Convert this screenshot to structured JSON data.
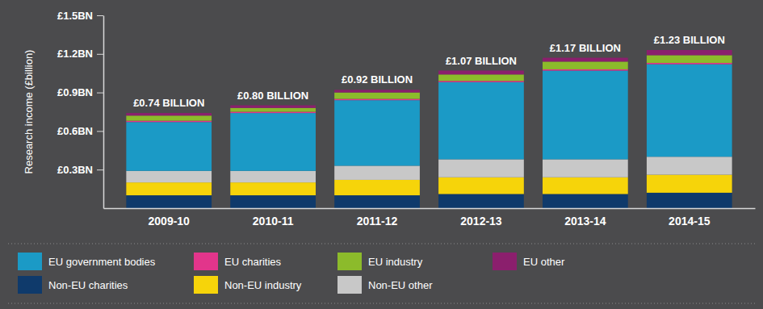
{
  "chart_data": {
    "type": "bar",
    "stacked": true,
    "y_label": "Research income (£billion)",
    "categories": [
      "2009-10",
      "2010-11",
      "2011-12",
      "2012-13",
      "2013-14",
      "2014-15"
    ],
    "annotations": [
      "£0.74 BILLION",
      "£0.80 BILLION",
      "£0.92 BILLION",
      "£1.07 BILLION",
      "£1.17 BILLION",
      "£1.23 BILLION"
    ],
    "ylim": [
      0,
      1.5
    ],
    "yticks": [
      {
        "value": 0.3,
        "label": "£0.3BN"
      },
      {
        "value": 0.6,
        "label": "£0.6BN"
      },
      {
        "value": 0.9,
        "label": "£0.9BN"
      },
      {
        "value": 1.2,
        "label": "£1.2BN"
      },
      {
        "value": 1.5,
        "label": "£1.5BN"
      }
    ],
    "legend": "bottom",
    "series": [
      {
        "name": "Non-EU charities",
        "color": "#0f3a6b",
        "values": [
          0.1,
          0.1,
          0.1,
          0.11,
          0.11,
          0.12
        ]
      },
      {
        "name": "Non-EU industry",
        "color": "#f6d40a",
        "values": [
          0.1,
          0.1,
          0.12,
          0.13,
          0.13,
          0.14
        ]
      },
      {
        "name": "Non-EU other",
        "color": "#c8c8c8",
        "values": [
          0.09,
          0.09,
          0.11,
          0.14,
          0.14,
          0.14
        ]
      },
      {
        "name": "EU government bodies",
        "color": "#1b9ac6",
        "values": [
          0.38,
          0.45,
          0.51,
          0.6,
          0.69,
          0.72
        ]
      },
      {
        "name": "EU charities",
        "color": "#e2358b",
        "values": [
          0.01,
          0.01,
          0.01,
          0.01,
          0.01,
          0.01
        ]
      },
      {
        "name": "EU industry",
        "color": "#8cbb2b",
        "values": [
          0.04,
          0.03,
          0.05,
          0.05,
          0.06,
          0.06
        ]
      },
      {
        "name": "EU other",
        "color": "#8b1f6d",
        "values": [
          0.02,
          0.02,
          0.02,
          0.03,
          0.03,
          0.04
        ]
      }
    ]
  }
}
